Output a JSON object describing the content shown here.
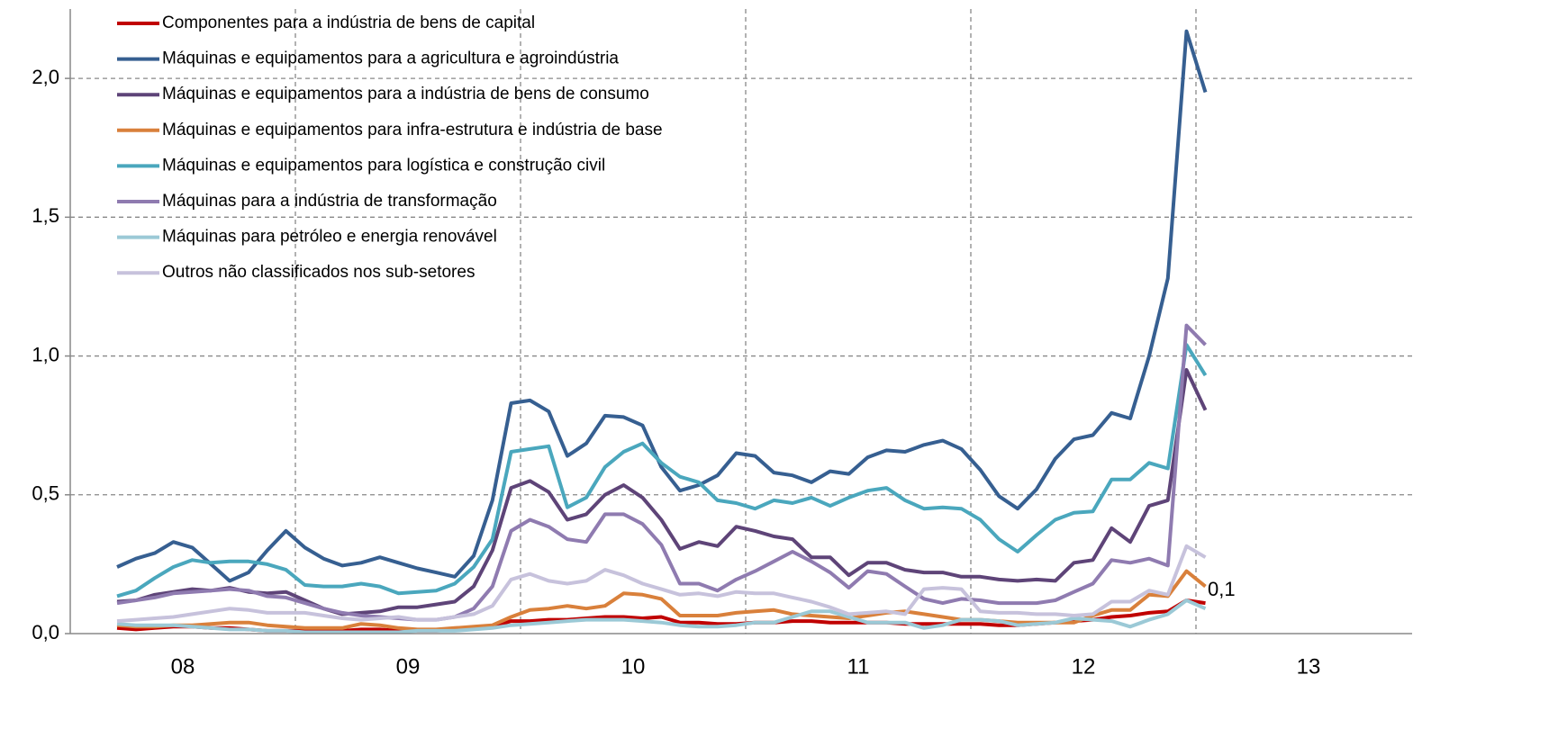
{
  "chart_data": {
    "type": "line",
    "annotations": [
      "0,1"
    ],
    "legend": "upper left",
    "grid": true,
    "xlim": [
      8,
      14
    ],
    "xticks": [
      {
        "value": 8,
        "label": "08"
      },
      {
        "value": 9,
        "label": "09"
      },
      {
        "value": 10,
        "label": "10"
      },
      {
        "value": 11,
        "label": "11"
      },
      {
        "value": 12,
        "label": "12"
      },
      {
        "value": 13,
        "label": "13"
      }
    ],
    "ylim": [
      0,
      2.25
    ],
    "yticks": [
      {
        "value": 0,
        "label": "0,0"
      },
      {
        "value": 0.5,
        "label": "0,5"
      },
      {
        "value": 1,
        "label": "1,0"
      },
      {
        "value": 1.5,
        "label": "1,5"
      },
      {
        "value": 2,
        "label": "2,0"
      }
    ],
    "x": [
      8.208,
      8.292,
      8.375,
      8.458,
      8.542,
      8.625,
      8.708,
      8.792,
      8.875,
      8.958,
      9.042,
      9.125,
      9.208,
      9.292,
      9.375,
      9.458,
      9.542,
      9.625,
      9.708,
      9.792,
      9.875,
      9.958,
      10.042,
      10.125,
      10.208,
      10.292,
      10.375,
      10.458,
      10.542,
      10.625,
      10.708,
      10.792,
      10.875,
      10.958,
      11.042,
      11.125,
      11.208,
      11.292,
      11.375,
      11.458,
      11.542,
      11.625,
      11.708,
      11.792,
      11.875,
      11.958,
      12.042,
      12.125,
      12.208,
      12.292,
      12.375,
      12.458,
      12.542,
      12.625,
      12.708,
      12.792,
      12.875,
      12.958,
      13.042
    ],
    "series": [
      {
        "name": "Componentes para a indústria de bens de capital",
        "color": "#c00000",
        "values": [
          0.02,
          0.015,
          0.02,
          0.025,
          0.025,
          0.02,
          0.02,
          0.015,
          0.01,
          0.01,
          0.01,
          0.01,
          0.01,
          0.015,
          0.015,
          0.01,
          0.01,
          0.01,
          0.015,
          0.02,
          0.025,
          0.045,
          0.045,
          0.05,
          0.05,
          0.055,
          0.06,
          0.06,
          0.055,
          0.06,
          0.04,
          0.04,
          0.035,
          0.035,
          0.04,
          0.04,
          0.045,
          0.045,
          0.04,
          0.04,
          0.04,
          0.04,
          0.035,
          0.035,
          0.035,
          0.035,
          0.035,
          0.03,
          0.03,
          0.035,
          0.04,
          0.045,
          0.05,
          0.06,
          0.065,
          0.075,
          0.08,
          0.12,
          0.11
        ]
      },
      {
        "name": "Máquinas e equipamentos para a agricultura e agroindústria",
        "color": "#365f91",
        "values": [
          0.24,
          0.27,
          0.29,
          0.33,
          0.31,
          0.25,
          0.19,
          0.22,
          0.3,
          0.37,
          0.31,
          0.27,
          0.245,
          0.255,
          0.275,
          0.255,
          0.235,
          0.22,
          0.205,
          0.28,
          0.48,
          0.83,
          0.84,
          0.8,
          0.64,
          0.685,
          0.785,
          0.78,
          0.75,
          0.6,
          0.515,
          0.535,
          0.57,
          0.65,
          0.64,
          0.58,
          0.57,
          0.545,
          0.585,
          0.575,
          0.635,
          0.66,
          0.655,
          0.68,
          0.695,
          0.665,
          0.59,
          0.495,
          0.45,
          0.52,
          0.63,
          0.7,
          0.715,
          0.795,
          0.775,
          1.0,
          1.28,
          2.17,
          1.95
        ]
      },
      {
        "name": "Máquinas e equipamentos para a indústria de bens de consumo",
        "color": "#5e4478",
        "values": [
          0.115,
          0.12,
          0.14,
          0.15,
          0.16,
          0.155,
          0.165,
          0.15,
          0.145,
          0.15,
          0.12,
          0.09,
          0.07,
          0.075,
          0.08,
          0.095,
          0.095,
          0.105,
          0.115,
          0.17,
          0.3,
          0.525,
          0.55,
          0.51,
          0.41,
          0.43,
          0.5,
          0.535,
          0.49,
          0.41,
          0.305,
          0.33,
          0.315,
          0.385,
          0.37,
          0.35,
          0.34,
          0.275,
          0.275,
          0.21,
          0.255,
          0.255,
          0.23,
          0.22,
          0.22,
          0.205,
          0.205,
          0.195,
          0.19,
          0.195,
          0.19,
          0.255,
          0.265,
          0.38,
          0.33,
          0.46,
          0.48,
          0.95,
          0.805
        ]
      },
      {
        "name": "Máquinas e equipamentos para infra-estrutura e indústria de base",
        "color": "#d9803b",
        "values": [
          0.03,
          0.025,
          0.025,
          0.03,
          0.03,
          0.035,
          0.04,
          0.04,
          0.03,
          0.025,
          0.02,
          0.02,
          0.02,
          0.035,
          0.03,
          0.02,
          0.015,
          0.015,
          0.02,
          0.025,
          0.03,
          0.06,
          0.085,
          0.09,
          0.1,
          0.09,
          0.1,
          0.145,
          0.14,
          0.125,
          0.065,
          0.065,
          0.065,
          0.075,
          0.08,
          0.085,
          0.07,
          0.065,
          0.06,
          0.055,
          0.065,
          0.075,
          0.08,
          0.07,
          0.06,
          0.05,
          0.05,
          0.045,
          0.04,
          0.04,
          0.04,
          0.04,
          0.065,
          0.085,
          0.085,
          0.14,
          0.135,
          0.225,
          0.17
        ]
      },
      {
        "name": "Máquinas e equipamentos para logística e construção civil",
        "color": "#4aa7bd",
        "values": [
          0.135,
          0.155,
          0.2,
          0.24,
          0.265,
          0.255,
          0.26,
          0.26,
          0.25,
          0.23,
          0.175,
          0.17,
          0.17,
          0.18,
          0.17,
          0.145,
          0.15,
          0.155,
          0.18,
          0.24,
          0.34,
          0.655,
          0.665,
          0.675,
          0.455,
          0.49,
          0.6,
          0.655,
          0.685,
          0.615,
          0.565,
          0.545,
          0.48,
          0.47,
          0.45,
          0.48,
          0.47,
          0.49,
          0.46,
          0.49,
          0.515,
          0.525,
          0.48,
          0.45,
          0.455,
          0.45,
          0.41,
          0.34,
          0.295,
          0.355,
          0.41,
          0.435,
          0.44,
          0.555,
          0.555,
          0.615,
          0.595,
          1.04,
          0.93
        ]
      },
      {
        "name": "Máquinas para a indústria de transformação",
        "color": "#8f7bb0",
        "values": [
          0.11,
          0.12,
          0.13,
          0.145,
          0.15,
          0.155,
          0.16,
          0.155,
          0.135,
          0.13,
          0.11,
          0.09,
          0.075,
          0.065,
          0.06,
          0.055,
          0.05,
          0.05,
          0.06,
          0.09,
          0.17,
          0.37,
          0.41,
          0.385,
          0.34,
          0.33,
          0.43,
          0.43,
          0.395,
          0.32,
          0.18,
          0.18,
          0.155,
          0.195,
          0.225,
          0.26,
          0.295,
          0.26,
          0.22,
          0.165,
          0.225,
          0.215,
          0.17,
          0.125,
          0.11,
          0.125,
          0.12,
          0.11,
          0.11,
          0.11,
          0.12,
          0.15,
          0.18,
          0.265,
          0.255,
          0.27,
          0.245,
          1.11,
          1.04
        ]
      },
      {
        "name": "Máquinas para petróleo e energia renovável",
        "color": "#9bc9d6",
        "values": [
          0.035,
          0.03,
          0.03,
          0.03,
          0.025,
          0.02,
          0.015,
          0.015,
          0.01,
          0.01,
          0.005,
          0.005,
          0.005,
          0.005,
          0.005,
          0.005,
          0.01,
          0.01,
          0.01,
          0.015,
          0.02,
          0.03,
          0.035,
          0.04,
          0.045,
          0.05,
          0.05,
          0.05,
          0.045,
          0.04,
          0.03,
          0.025,
          0.025,
          0.03,
          0.04,
          0.04,
          0.06,
          0.08,
          0.08,
          0.06,
          0.04,
          0.04,
          0.04,
          0.02,
          0.03,
          0.05,
          0.05,
          0.045,
          0.03,
          0.035,
          0.04,
          0.055,
          0.05,
          0.045,
          0.025,
          0.05,
          0.07,
          0.12,
          0.09
        ]
      },
      {
        "name": "Outros não classificados nos sub-setores",
        "color": "#c7c2dc",
        "values": [
          0.045,
          0.05,
          0.055,
          0.06,
          0.07,
          0.08,
          0.09,
          0.085,
          0.075,
          0.075,
          0.075,
          0.065,
          0.055,
          0.05,
          0.055,
          0.06,
          0.05,
          0.05,
          0.06,
          0.07,
          0.1,
          0.195,
          0.215,
          0.19,
          0.18,
          0.19,
          0.23,
          0.21,
          0.18,
          0.16,
          0.14,
          0.145,
          0.135,
          0.15,
          0.145,
          0.145,
          0.13,
          0.115,
          0.095,
          0.07,
          0.075,
          0.08,
          0.07,
          0.16,
          0.165,
          0.16,
          0.08,
          0.075,
          0.075,
          0.07,
          0.07,
          0.065,
          0.07,
          0.115,
          0.115,
          0.155,
          0.14,
          0.315,
          0.275
        ]
      }
    ]
  }
}
